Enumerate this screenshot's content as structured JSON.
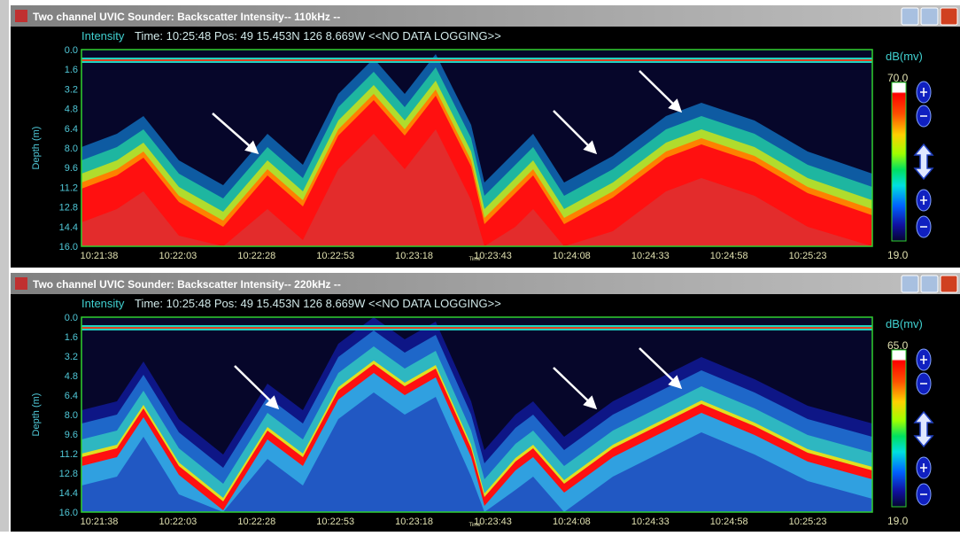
{
  "windows": [
    {
      "title": "Two channel UVIC Sounder: Backscatter Intensity-- 110kHz --",
      "info_label": "Intensity",
      "info": "Time: 10:25:48 Pos: 49 15.453N 126  8.669W    <<NO DATA LOGGING>>",
      "y_label": "Depth (m)",
      "depth_ticks": [
        "0.0",
        "1.6",
        "3.2",
        "4.8",
        "6.4",
        "8.0",
        "9.6",
        "11.2",
        "12.8",
        "14.4",
        "16.0"
      ],
      "time_ticks": [
        "10:21:38",
        "10:22:03",
        "10:22:28",
        "10:22:53",
        "10:23:18",
        "10:23:43",
        "10:24:08",
        "10:24:33",
        "10:24:58",
        "10:25:23"
      ],
      "x_label": "Time",
      "scale_unit": "dB(mv)",
      "scale_max": "70.0",
      "scale_min": "19.0"
    },
    {
      "title": "Two channel UVIC Sounder: Backscatter Intensity-- 220kHz --",
      "info_label": "Intensity",
      "info": "Time: 10:25:48 Pos: 49 15.453N 126  8.669W    <<NO DATA LOGGING>>",
      "y_label": "Depth (m)",
      "depth_ticks": [
        "0.0",
        "1.6",
        "3.2",
        "4.8",
        "6.4",
        "8.0",
        "9.6",
        "11.2",
        "12.8",
        "14.4",
        "16.0"
      ],
      "time_ticks": [
        "10:21:38",
        "10:22:03",
        "10:22:28",
        "10:22:53",
        "10:23:18",
        "10:23:43",
        "10:24:08",
        "10:24:33",
        "10:24:58",
        "10:25:23"
      ],
      "x_label": "Time",
      "scale_unit": "dB(mv)",
      "scale_max": "65.0",
      "scale_min": "19.0"
    }
  ]
}
